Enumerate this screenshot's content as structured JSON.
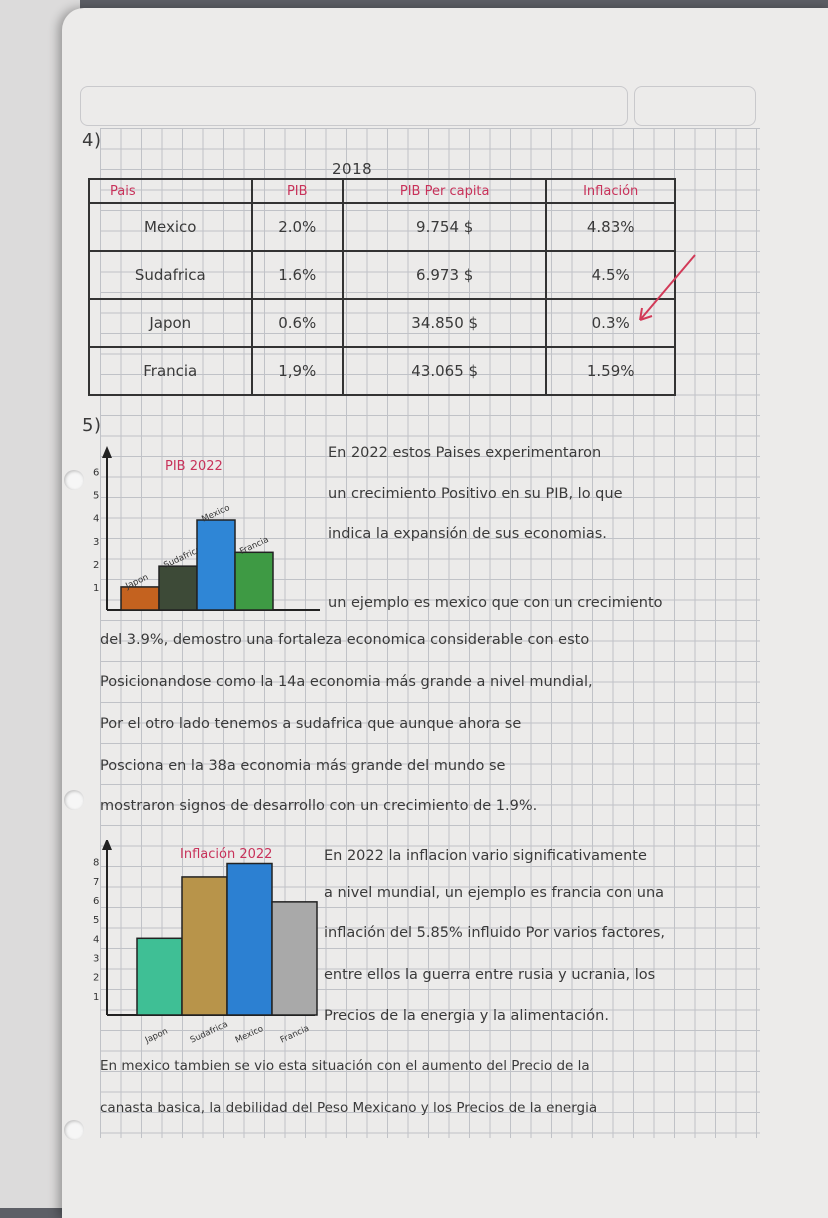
{
  "section4": {
    "number": "4)",
    "year": "2018",
    "headers": [
      "Pais",
      "PIB",
      "PIB Per capita",
      "Inflación"
    ],
    "rows": [
      [
        "Mexico",
        "2.0%",
        "9.754 $",
        "4.83%"
      ],
      [
        "Sudafrica",
        "1.6%",
        "6.973 $",
        "4.5%"
      ],
      [
        "Japon",
        "0.6%",
        "34.850 $",
        "0.3%"
      ],
      [
        "Francia",
        "1,9%",
        "43.065 $",
        "1.59%"
      ]
    ]
  },
  "section5": {
    "number": "5)",
    "paragraph1": [
      "En 2022 estos Paises experimentaron",
      "un crecimiento Positivo en su PIB, lo que",
      "indica la expansión de sus economias.",
      "un ejemplo es mexico que con un crecimiento"
    ],
    "paragraph1_full": [
      "del 3.9%, demostro una fortaleza economica considerable con esto",
      "Posicionandose como la 14a economia más grande a nivel mundial,",
      "Por el otro lado tenemos a sudafrica que aunque ahora se",
      "Posciona en la 38a economia más grande del mundo se",
      "mostraron signos de desarrollo con un crecimiento de 1.9%."
    ],
    "paragraph2": [
      "En 2022 la inflacion vario significativamente",
      "a nivel mundial, un ejemplo es francia con una",
      "inflación del 5.85% influido Por varios factores,",
      "entre ellos la guerra entre rusia y ucrania, los",
      "Precios de la energia y la alimentación."
    ],
    "paragraph2_full": [
      "En mexico tambien se vio esta situación con el aumento del Precio de la",
      "canasta basica, la debilidad del Peso Mexicano y los Precios de la energia"
    ]
  },
  "chart_data": [
    {
      "type": "bar",
      "title": "PIB 2022",
      "categories": [
        "Japon",
        "Sudafrica",
        "Mexico",
        "Francia"
      ],
      "values": [
        1.0,
        1.9,
        3.9,
        2.5
      ],
      "colors": [
        "#c4621f",
        "#3d4a37",
        "#2f86d6",
        "#3e9a44"
      ],
      "yticks": [
        "1",
        "2",
        "3",
        "4",
        "5",
        "6"
      ],
      "ylim": [
        0,
        6.5
      ]
    },
    {
      "type": "bar",
      "title": "Inflación 2022",
      "categories": [
        "Japon",
        "Sudafrica",
        "Mexico",
        "Francia"
      ],
      "values": [
        4.0,
        7.2,
        7.9,
        5.9
      ],
      "colors": [
        "#3fbf95",
        "#b8944a",
        "#2c80d2",
        "#a9a9a9"
      ],
      "yticks": [
        "1",
        "2",
        "3",
        "4",
        "5",
        "6",
        "7",
        "8"
      ],
      "ylim": [
        0,
        8.5
      ]
    }
  ]
}
